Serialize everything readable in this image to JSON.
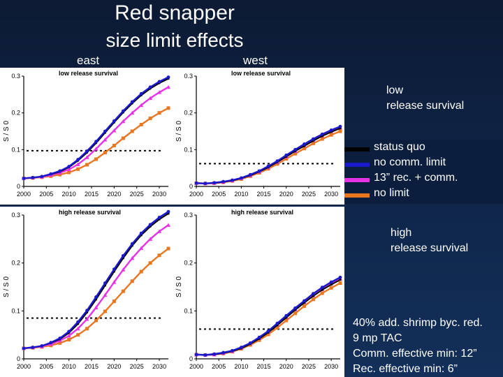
{
  "title_line1": "Red snapper",
  "title_line2": "size limit effects",
  "region_east": "east",
  "region_west": "west",
  "side_low": [
    "low",
    "release survival"
  ],
  "side_high": [
    "high",
    "release survival"
  ],
  "legend": [
    {
      "label": "status quo",
      "color": "#000000"
    },
    {
      "label": "no comm. limit",
      "color": "#1a1acc"
    },
    {
      "label": "13” rec. + comm.",
      "color": "#e633e6"
    },
    {
      "label": " no limit",
      "color": "#e87722"
    }
  ],
  "notes": [
    "40% add. shrimp byc. red.",
    "9 mp TAC",
    "Comm. effective min: 12”",
    "Rec. effective min: 6”"
  ],
  "chart_data": [
    {
      "type": "line",
      "id": "east-low",
      "subtitle": "low release survival",
      "ylabel": "S / S 0",
      "x": [
        2000,
        2002,
        2004,
        2006,
        2008,
        2010,
        2012,
        2014,
        2016,
        2018,
        2020,
        2022,
        2024,
        2026,
        2028,
        2030,
        2032
      ],
      "xticks": [
        "2000",
        "2005",
        "2010",
        "2015",
        "2020",
        "2025",
        "2030"
      ],
      "yticks": [
        "0",
        "0.1",
        "0.2",
        "0.3"
      ],
      "xlim": [
        2000,
        2032
      ],
      "ylim": [
        0,
        0.3
      ],
      "ref_line": 0.097,
      "series": [
        {
          "name": "status quo",
          "values": [
            0.022,
            0.024,
            0.027,
            0.033,
            0.04,
            0.052,
            0.07,
            0.092,
            0.118,
            0.146,
            0.174,
            0.201,
            0.226,
            0.248,
            0.266,
            0.281,
            0.293
          ]
        },
        {
          "name": "no comm. limit",
          "values": [
            0.022,
            0.024,
            0.027,
            0.034,
            0.042,
            0.054,
            0.073,
            0.096,
            0.122,
            0.15,
            0.178,
            0.205,
            0.23,
            0.252,
            0.27,
            0.285,
            0.297
          ]
        },
        {
          "name": "13” rec. + comm.",
          "values": [
            0.022,
            0.024,
            0.026,
            0.031,
            0.037,
            0.046,
            0.06,
            0.079,
            0.102,
            0.127,
            0.152,
            0.177,
            0.2,
            0.221,
            0.24,
            0.256,
            0.27
          ]
        },
        {
          "name": " no limit",
          "values": [
            0.022,
            0.023,
            0.025,
            0.028,
            0.032,
            0.038,
            0.047,
            0.059,
            0.074,
            0.092,
            0.111,
            0.131,
            0.15,
            0.168,
            0.185,
            0.2,
            0.213
          ]
        }
      ]
    },
    {
      "type": "line",
      "id": "west-low",
      "subtitle": "low release survival",
      "ylabel": "S / S 0",
      "x": [
        2000,
        2002,
        2004,
        2006,
        2008,
        2010,
        2012,
        2014,
        2016,
        2018,
        2020,
        2022,
        2024,
        2026,
        2028,
        2030,
        2032
      ],
      "xticks": [
        "2000",
        "2005",
        "2010",
        "2015",
        "2020",
        "2025",
        "2030"
      ],
      "yticks": [
        "0",
        "0.1",
        "0.2",
        "0.3"
      ],
      "xlim": [
        2000,
        2032
      ],
      "ylim": [
        0,
        0.3
      ],
      "ref_line": 0.062,
      "series": [
        {
          "name": "status quo",
          "values": [
            0.009,
            0.008,
            0.009,
            0.012,
            0.016,
            0.022,
            0.03,
            0.04,
            0.052,
            0.066,
            0.081,
            0.096,
            0.11,
            0.124,
            0.137,
            0.148,
            0.158
          ]
        },
        {
          "name": "no comm. limit",
          "values": [
            0.009,
            0.008,
            0.01,
            0.013,
            0.017,
            0.023,
            0.032,
            0.042,
            0.055,
            0.069,
            0.085,
            0.1,
            0.115,
            0.129,
            0.142,
            0.153,
            0.163
          ]
        },
        {
          "name": "13” rec. + comm.",
          "values": [
            0.009,
            0.008,
            0.009,
            0.012,
            0.016,
            0.022,
            0.03,
            0.04,
            0.052,
            0.066,
            0.081,
            0.096,
            0.111,
            0.125,
            0.138,
            0.15,
            0.16
          ]
        },
        {
          "name": " no limit",
          "values": [
            0.009,
            0.008,
            0.009,
            0.011,
            0.015,
            0.02,
            0.028,
            0.037,
            0.048,
            0.061,
            0.075,
            0.089,
            0.103,
            0.117,
            0.129,
            0.14,
            0.15
          ]
        }
      ]
    },
    {
      "type": "line",
      "id": "east-high",
      "subtitle": "high release survival",
      "ylabel": "S / S 0",
      "x": [
        2000,
        2002,
        2004,
        2006,
        2008,
        2010,
        2012,
        2014,
        2016,
        2018,
        2020,
        2022,
        2024,
        2026,
        2028,
        2030,
        2032
      ],
      "xticks": [
        "2000",
        "2005",
        "2010",
        "2015",
        "2020",
        "2025",
        "2030"
      ],
      "yticks": [
        "0",
        "0.1",
        "0.2",
        "0.3"
      ],
      "xlim": [
        2000,
        2032
      ],
      "ylim": [
        0,
        0.3
      ],
      "ref_line": 0.085,
      "series": [
        {
          "name": "status quo",
          "values": [
            0.022,
            0.024,
            0.027,
            0.033,
            0.041,
            0.054,
            0.073,
            0.097,
            0.124,
            0.153,
            0.182,
            0.21,
            0.236,
            0.258,
            0.276,
            0.291,
            0.303
          ]
        },
        {
          "name": "no comm. limit",
          "values": [
            0.022,
            0.024,
            0.027,
            0.034,
            0.043,
            0.057,
            0.077,
            0.101,
            0.129,
            0.158,
            0.187,
            0.215,
            0.24,
            0.262,
            0.28,
            0.295,
            0.307
          ]
        },
        {
          "name": "13” rec. + comm.",
          "values": [
            0.022,
            0.024,
            0.026,
            0.031,
            0.038,
            0.048,
            0.063,
            0.083,
            0.107,
            0.133,
            0.16,
            0.186,
            0.21,
            0.231,
            0.25,
            0.266,
            0.279
          ]
        },
        {
          "name": " no limit",
          "values": [
            0.022,
            0.023,
            0.025,
            0.028,
            0.033,
            0.04,
            0.05,
            0.063,
            0.08,
            0.099,
            0.12,
            0.141,
            0.162,
            0.182,
            0.2,
            0.216,
            0.23
          ]
        }
      ]
    },
    {
      "type": "line",
      "id": "west-high",
      "subtitle": "high release survival",
      "ylabel": "S / S 0",
      "x": [
        2000,
        2002,
        2004,
        2006,
        2008,
        2010,
        2012,
        2014,
        2016,
        2018,
        2020,
        2022,
        2024,
        2026,
        2028,
        2030,
        2032
      ],
      "xticks": [
        "2000",
        "2005",
        "2010",
        "2015",
        "2020",
        "2025",
        "2030"
      ],
      "yticks": [
        "0",
        "0.1",
        "0.2",
        "0.3"
      ],
      "xlim": [
        2000,
        2032
      ],
      "ylim": [
        0,
        0.3
      ],
      "ref_line": 0.062,
      "series": [
        {
          "name": "status quo",
          "values": [
            0.009,
            0.008,
            0.009,
            0.012,
            0.016,
            0.022,
            0.031,
            0.042,
            0.055,
            0.07,
            0.086,
            0.102,
            0.117,
            0.131,
            0.144,
            0.155,
            0.165
          ]
        },
        {
          "name": "no comm. limit",
          "values": [
            0.009,
            0.008,
            0.01,
            0.013,
            0.017,
            0.024,
            0.033,
            0.045,
            0.058,
            0.074,
            0.09,
            0.106,
            0.121,
            0.136,
            0.149,
            0.16,
            0.17
          ]
        },
        {
          "name": "13” rec. + comm.",
          "values": [
            0.009,
            0.008,
            0.009,
            0.012,
            0.016,
            0.023,
            0.032,
            0.043,
            0.056,
            0.071,
            0.087,
            0.103,
            0.118,
            0.132,
            0.145,
            0.157,
            0.167
          ]
        },
        {
          "name": " no limit",
          "values": [
            0.009,
            0.008,
            0.009,
            0.011,
            0.015,
            0.021,
            0.029,
            0.039,
            0.051,
            0.065,
            0.08,
            0.095,
            0.11,
            0.124,
            0.137,
            0.148,
            0.158
          ]
        }
      ]
    }
  ]
}
